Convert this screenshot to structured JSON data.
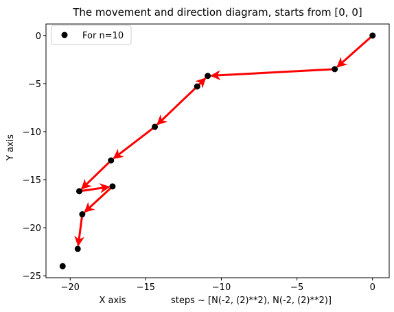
{
  "chart_data": {
    "type": "scatter",
    "title": "The movement and direction diagram, starts from [0, 0]",
    "xlabel": "X axis",
    "xlabel_note": "steps ~ [N(-2, (2)**2), N(-2, (2)**2)]",
    "ylabel": "Y axis",
    "xlim": [
      -21.6,
      1.1
    ],
    "ylim": [
      -25.2,
      1.2
    ],
    "xticks": [
      -20,
      -15,
      -10,
      -5,
      0
    ],
    "yticks": [
      0,
      -5,
      -10,
      -15,
      -20,
      -25
    ],
    "grid": false,
    "legend": {
      "placement": "top-left",
      "label": "For n=10"
    },
    "point_color": "#000000",
    "arrow_color": "#ff0000",
    "series": [
      {
        "name": "For n=10",
        "points": [
          [
            0.0,
            0.0
          ],
          [
            -2.5,
            -3.5
          ],
          [
            -10.9,
            -4.2
          ],
          [
            -11.6,
            -5.3
          ],
          [
            -14.4,
            -9.5
          ],
          [
            -17.3,
            -13.0
          ],
          [
            -19.4,
            -16.2
          ],
          [
            -17.2,
            -15.7
          ],
          [
            -19.2,
            -18.6
          ],
          [
            -19.5,
            -22.2
          ],
          [
            -20.5,
            -24.0
          ]
        ]
      }
    ],
    "arrows": [
      {
        "from": [
          0.0,
          0.0
        ],
        "to": [
          -2.5,
          -3.5
        ]
      },
      {
        "from": [
          -2.5,
          -3.5
        ],
        "to": [
          -10.9,
          -4.2
        ]
      },
      {
        "from": [
          -11.6,
          -5.3
        ],
        "to": [
          -10.9,
          -4.2
        ]
      },
      {
        "from": [
          -11.6,
          -5.3
        ],
        "to": [
          -14.4,
          -9.5
        ]
      },
      {
        "from": [
          -14.4,
          -9.5
        ],
        "to": [
          -17.3,
          -13.0
        ]
      },
      {
        "from": [
          -17.3,
          -13.0
        ],
        "to": [
          -19.4,
          -16.2
        ]
      },
      {
        "from": [
          -19.4,
          -16.2
        ],
        "to": [
          -17.2,
          -15.7
        ]
      },
      {
        "from": [
          -17.2,
          -15.7
        ],
        "to": [
          -19.2,
          -18.6
        ]
      },
      {
        "from": [
          -19.2,
          -18.6
        ],
        "to": [
          -19.5,
          -22.2
        ]
      }
    ]
  }
}
